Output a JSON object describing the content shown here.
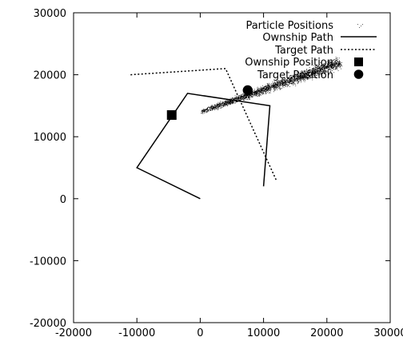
{
  "chart_data": {
    "type": "scatter",
    "title": "",
    "xlabel": "",
    "ylabel": "",
    "xlim": [
      -20000,
      30000
    ],
    "ylim": [
      -20000,
      30000
    ],
    "xticks": [
      -20000,
      -10000,
      0,
      10000,
      20000,
      30000
    ],
    "yticks": [
      -20000,
      -10000,
      0,
      10000,
      20000,
      30000
    ],
    "xtick_labels": [
      "-20000",
      "-10000",
      "0",
      "10000",
      "20000",
      "30000"
    ],
    "ytick_labels": [
      "-20000",
      "-10000",
      "0",
      "10000",
      "20000",
      "30000"
    ],
    "grid": false,
    "legend_position": "top-right",
    "series": [
      {
        "name": "Particle Positions",
        "kind": "points",
        "color": "#000000",
        "cloud": {
          "count": 2600,
          "start": [
            0,
            14000
          ],
          "end": [
            22000,
            22000
          ],
          "spread": 850
        }
      },
      {
        "name": "Ownship Path",
        "kind": "line",
        "dash": "solid",
        "color": "#000000",
        "x": [
          0,
          -10000,
          -2000,
          11000,
          10000
        ],
        "y": [
          0,
          5000,
          17000,
          15000,
          2000
        ]
      },
      {
        "name": "Target Path",
        "kind": "line",
        "dash": "dotted",
        "color": "#000000",
        "x": [
          -11000,
          4000,
          12000
        ],
        "y": [
          20000,
          21000,
          3000
        ]
      },
      {
        "name": "Ownship Position",
        "kind": "marker",
        "marker": "square",
        "color": "#000000",
        "x": [
          -4500
        ],
        "y": [
          13500
        ]
      },
      {
        "name": "Target Position",
        "kind": "marker",
        "marker": "circle",
        "color": "#000000",
        "x": [
          7500
        ],
        "y": [
          17500
        ]
      }
    ]
  }
}
